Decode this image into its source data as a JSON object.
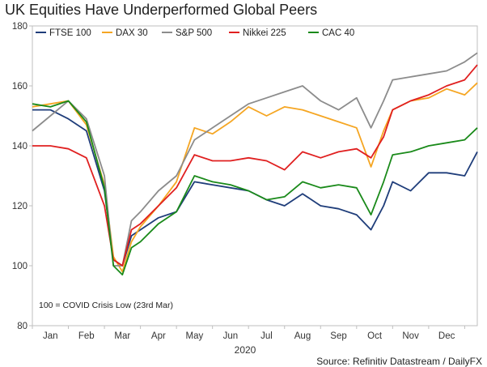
{
  "chart_data": {
    "type": "line",
    "title": "UK Equities Have Underperformed Global Peers",
    "year_label": "2020",
    "source": "Source: Refinitiv Datastream / DailyFX",
    "note": "100 = COVID Crisis Low (23rd Mar)",
    "months": [
      "Jan",
      "Feb",
      "Mar",
      "Apr",
      "May",
      "Jun",
      "Jul",
      "Aug",
      "Sep",
      "Oct",
      "Nov",
      "Dec"
    ],
    "ylim": [
      80,
      180
    ],
    "yticks": [
      80,
      100,
      120,
      140,
      160,
      180
    ],
    "x_range_months": [
      0,
      12.35
    ],
    "legend_position": "top-left",
    "grid": false,
    "x": [
      0.0,
      0.5,
      1.0,
      1.5,
      2.0,
      2.25,
      2.5,
      2.75,
      3.0,
      3.5,
      4.0,
      4.5,
      5.0,
      5.5,
      6.0,
      6.5,
      7.0,
      7.5,
      8.0,
      8.5,
      9.0,
      9.4,
      9.75,
      10.0,
      10.5,
      11.0,
      11.5,
      12.0,
      12.35
    ],
    "series": [
      {
        "name": "FTSE 100",
        "color": "#1f3d7a",
        "values": [
          152,
          152,
          149,
          145,
          125,
          102,
          100,
          110,
          112,
          116,
          118,
          128,
          127,
          126,
          125,
          122,
          120,
          124,
          120,
          119,
          117,
          112,
          120,
          128,
          125,
          131,
          131,
          130,
          138
        ]
      },
      {
        "name": "DAX 30",
        "color": "#f5a623",
        "values": [
          153,
          154,
          155,
          147,
          127,
          103,
          98,
          108,
          113,
          120,
          128,
          146,
          144,
          148,
          153,
          150,
          153,
          152,
          150,
          148,
          146,
          133,
          145,
          152,
          155,
          156,
          159,
          157,
          161
        ]
      },
      {
        "name": "S&P 500",
        "color": "#8c8c8c",
        "values": [
          145,
          150,
          155,
          149,
          130,
          100,
          100,
          115,
          118,
          125,
          130,
          142,
          146,
          150,
          154,
          156,
          158,
          160,
          155,
          152,
          156,
          146,
          155,
          162,
          163,
          164,
          165,
          168,
          171
        ]
      },
      {
        "name": "Nikkei 225",
        "color": "#e02020",
        "values": [
          140,
          140,
          139,
          136,
          120,
          102,
          100,
          112,
          114,
          120,
          126,
          137,
          135,
          135,
          136,
          135,
          132,
          138,
          136,
          138,
          139,
          136,
          143,
          152,
          155,
          157,
          160,
          162,
          167
        ]
      },
      {
        "name": "CAC 40",
        "color": "#1a8a1a",
        "values": [
          154,
          153,
          155,
          148,
          126,
          100,
          97,
          106,
          108,
          114,
          118,
          130,
          128,
          127,
          125,
          122,
          123,
          128,
          126,
          127,
          126,
          117,
          128,
          137,
          138,
          140,
          141,
          142,
          146
        ]
      }
    ]
  }
}
